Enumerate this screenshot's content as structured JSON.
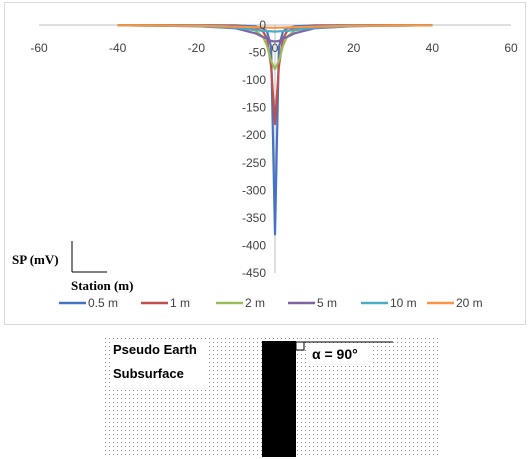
{
  "chart_data": {
    "type": "line",
    "xlim": [
      -60,
      60
    ],
    "ylim": [
      -450,
      0
    ],
    "x_ticks": [
      "-60",
      "-40",
      "-20",
      "0",
      "20",
      "40",
      "60"
    ],
    "y_ticks": [
      "0",
      "-50",
      "-100",
      "-150",
      "-200",
      "-250",
      "-300",
      "-350",
      "-400",
      "-450"
    ],
    "ylabel": "SP (mV)",
    "xlabel": "Station (m)",
    "legend_position": "bottom",
    "x": [
      -40,
      -20,
      -10,
      -5,
      -3,
      -2,
      -1,
      0,
      1,
      2,
      3,
      5,
      10,
      20,
      40
    ],
    "series": [
      {
        "name": "0.5 m",
        "color": "#4472c4",
        "values": [
          -0.1,
          -0.3,
          -0.8,
          -2.5,
          -6,
          -12,
          -40,
          -380,
          -40,
          -12,
          -6,
          -2.5,
          -0.8,
          -0.3,
          -0.1
        ]
      },
      {
        "name": "1 m",
        "color": "#c0504d",
        "values": [
          -0.2,
          -0.6,
          -1.5,
          -5,
          -12,
          -25,
          -75,
          -180,
          -75,
          -25,
          -12,
          -5,
          -1.5,
          -0.6,
          -0.2
        ]
      },
      {
        "name": "2 m",
        "color": "#9bbb59",
        "values": [
          -0.3,
          -1,
          -3,
          -10,
          -22,
          -38,
          -65,
          -80,
          -65,
          -38,
          -22,
          -10,
          -3,
          -1,
          -0.3
        ]
      },
      {
        "name": "5 m",
        "color": "#8064a2",
        "values": [
          -0.5,
          -2,
          -6,
          -15,
          -22,
          -25,
          -29,
          -30,
          -29,
          -25,
          -22,
          -15,
          -6,
          -2,
          -0.5
        ]
      },
      {
        "name": "10 m",
        "color": "#4bacc6",
        "values": [
          -0.5,
          -2,
          -5,
          -9,
          -10.5,
          -11,
          -11.5,
          -12,
          -11.5,
          -11,
          -10.5,
          -9,
          -5,
          -2,
          -0.5
        ]
      },
      {
        "name": "20 m",
        "color": "#f79646",
        "values": [
          -0.5,
          -1.5,
          -3,
          -4,
          -4.5,
          -4.7,
          -4.9,
          -5,
          -4.9,
          -4.7,
          -4.5,
          -4,
          -3,
          -1.5,
          -0.5
        ]
      }
    ]
  },
  "diagram": {
    "label_line1": "Pseudo Earth",
    "label_line2": "Subsurface",
    "angle_label": "α = 90°"
  }
}
